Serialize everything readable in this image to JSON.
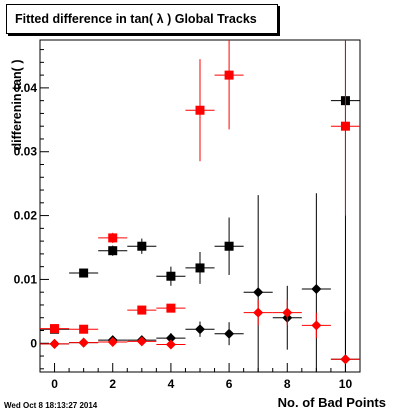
{
  "title": "Fitted difference in tan( λ )  Global Tracks",
  "timestamp": "Wed Oct  8 18:13:27 2014",
  "chart_data": {
    "type": "scatter",
    "xlabel": "No. of Bad Points",
    "ylabel": "differenin tan( )",
    "xlim": [
      -0.5,
      10.5
    ],
    "ylim": [
      -0.0045,
      0.0475
    ],
    "xticks": [
      {
        "v": 0,
        "label": "0"
      },
      {
        "v": 2,
        "label": "2"
      },
      {
        "v": 4,
        "label": "4"
      },
      {
        "v": 6,
        "label": "6"
      },
      {
        "v": 8,
        "label": "8"
      },
      {
        "v": 10,
        "label": "10"
      }
    ],
    "yticks": [
      {
        "v": 0,
        "label": "0"
      },
      {
        "v": 0.01,
        "label": "0.01"
      },
      {
        "v": 0.02,
        "label": "0.02"
      },
      {
        "v": 0.03,
        "label": "0.03"
      },
      {
        "v": 0.04,
        "label": "0.04"
      }
    ],
    "series": [
      {
        "marker": "square",
        "color": "#000000",
        "points": [
          {
            "x": 0,
            "y": 0.0022,
            "err": 0.0003
          },
          {
            "x": 1,
            "y": 0.011,
            "err": 0.0004
          },
          {
            "x": 2,
            "y": 0.0145,
            "err": 0.0008
          },
          {
            "x": 3,
            "y": 0.0152,
            "err": 0.0012
          },
          {
            "x": 4,
            "y": 0.0105,
            "err": 0.0015
          },
          {
            "x": 5,
            "y": 0.0118,
            "err": 0.0025
          },
          {
            "x": 6,
            "y": 0.0152,
            "err": 0.0045
          },
          {
            "x": 10,
            "y": 0.038,
            "err": 0.045
          }
        ]
      },
      {
        "marker": "square",
        "color": "#ff0000",
        "points": [
          {
            "x": 0,
            "y": 0.0023,
            "err": 0.0002
          },
          {
            "x": 1,
            "y": 0.0022,
            "err": 0.0003
          },
          {
            "x": 2,
            "y": 0.0165,
            "err": 0.0008
          },
          {
            "x": 3,
            "y": 0.0052,
            "err": 0.0004
          },
          {
            "x": 4,
            "y": 0.0055,
            "err": 0.0005
          },
          {
            "x": 5,
            "y": 0.0365,
            "err": 0.008
          },
          {
            "x": 6,
            "y": 0.042,
            "err": 0.0085
          },
          {
            "x": 10,
            "y": 0.034,
            "err": 0.014
          }
        ]
      },
      {
        "marker": "diamond",
        "color": "#000000",
        "points": [
          {
            "x": 0,
            "y": -0.0001,
            "err": 0.0002
          },
          {
            "x": 1,
            "y": 0.0001,
            "err": 0.0003
          },
          {
            "x": 2,
            "y": 0.0005,
            "err": 0.0005
          },
          {
            "x": 3,
            "y": 0.0005,
            "err": 0.0005
          },
          {
            "x": 4,
            "y": 0.0008,
            "err": 0.0008
          },
          {
            "x": 5,
            "y": 0.0022,
            "err": 0.0012
          },
          {
            "x": 6,
            "y": 0.0015,
            "err": 0.0018
          },
          {
            "x": 7,
            "y": 0.008,
            "err": 0.0152
          },
          {
            "x": 8,
            "y": 0.004,
            "err": 0.005
          },
          {
            "x": 9,
            "y": 0.0085,
            "err": 0.015
          },
          {
            "x": 10,
            "y": -0.0025,
            "err": 0.0075
          }
        ]
      },
      {
        "marker": "diamond",
        "color": "#ff0000",
        "points": [
          {
            "x": 0,
            "y": -0.0001,
            "err": 0.0002
          },
          {
            "x": 1,
            "y": 0.0001,
            "err": 0.0002
          },
          {
            "x": 2,
            "y": 0.0002,
            "err": 0.0002
          },
          {
            "x": 3,
            "y": 0.0003,
            "err": 0.0003
          },
          {
            "x": 4,
            "y": -0.0002,
            "err": 0.0003
          },
          {
            "x": 7,
            "y": 0.0048,
            "err": 0.002
          },
          {
            "x": 8,
            "y": 0.0048,
            "err": 0.002
          },
          {
            "x": 9,
            "y": 0.0028,
            "err": 0.002
          },
          {
            "x": 10,
            "y": -0.0025,
            "err": 0.0003
          }
        ]
      }
    ]
  }
}
